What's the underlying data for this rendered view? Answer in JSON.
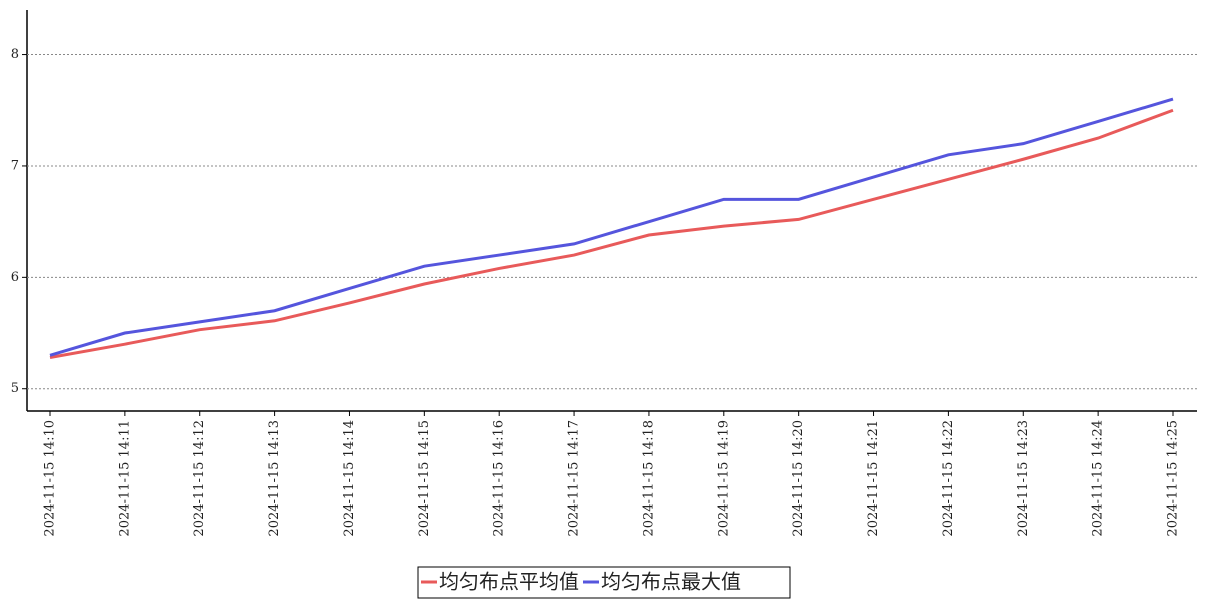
{
  "chart_data": {
    "type": "line",
    "categories": [
      "2024-11-15 14:10",
      "2024-11-15 14:11",
      "2024-11-15 14:12",
      "2024-11-15 14:13",
      "2024-11-15 14:14",
      "2024-11-15 14:15",
      "2024-11-15 14:16",
      "2024-11-15 14:17",
      "2024-11-15 14:18",
      "2024-11-15 14:19",
      "2024-11-15 14:20",
      "2024-11-15 14:21",
      "2024-11-15 14:22",
      "2024-11-15 14:23",
      "2024-11-15 14:24",
      "2024-11-15 14:25"
    ],
    "series": [
      {
        "name": "均匀布点平均值",
        "color": "#e85a5a",
        "values": [
          5.28,
          5.4,
          5.53,
          5.61,
          5.77,
          5.94,
          6.08,
          6.2,
          6.38,
          6.46,
          6.52,
          6.7,
          6.88,
          7.06,
          7.25,
          7.5
        ]
      },
      {
        "name": "均匀布点最大值",
        "color": "#5555dd",
        "values": [
          5.3,
          5.5,
          5.6,
          5.7,
          5.9,
          6.1,
          6.2,
          6.3,
          6.5,
          6.7,
          6.7,
          6.9,
          7.1,
          7.2,
          7.4,
          7.6
        ]
      }
    ],
    "ylim": [
      4.8,
      8.4
    ],
    "yticks": [
      5,
      6,
      7,
      8
    ],
    "grid": true,
    "legend": "bottom"
  }
}
